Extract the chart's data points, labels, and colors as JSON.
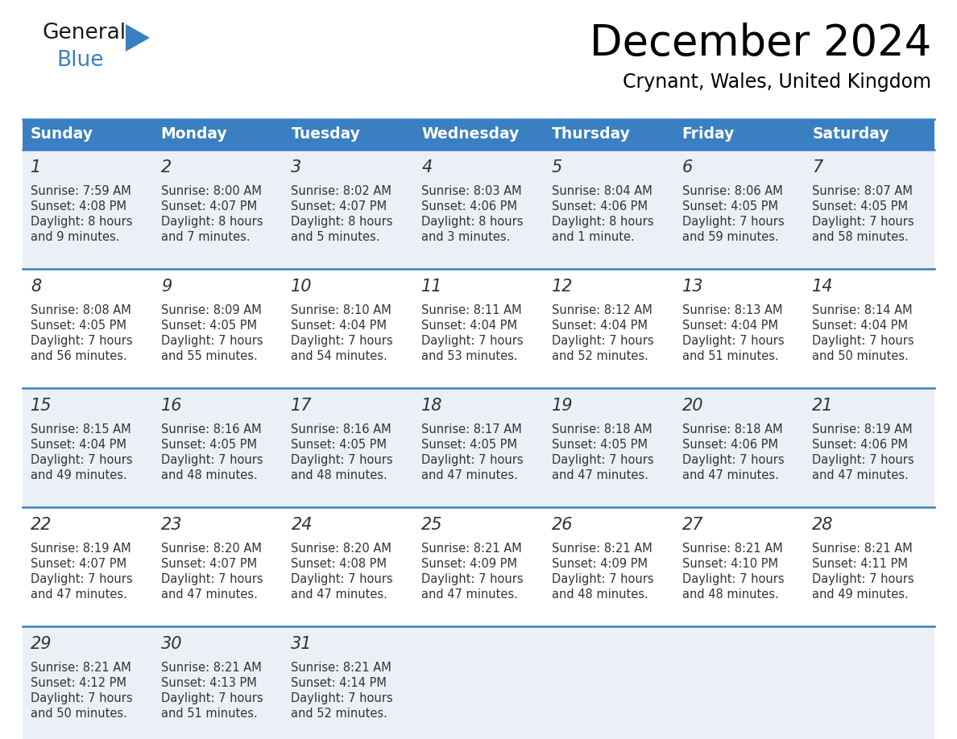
{
  "title": "December 2024",
  "subtitle": "Crynant, Wales, United Kingdom",
  "header_bg_color": "#3a7fc1",
  "header_text_color": "#ffffff",
  "cell_bg_color_a": "#eaf0f6",
  "cell_bg_color_b": "#ffffff",
  "divider_color": "#3a7fc1",
  "text_color": "#333333",
  "day_number_color": "#333333",
  "day_headers": [
    "Sunday",
    "Monday",
    "Tuesday",
    "Wednesday",
    "Thursday",
    "Friday",
    "Saturday"
  ],
  "weeks": [
    [
      {
        "day": "1",
        "sunrise": "7:59 AM",
        "sunset": "4:08 PM",
        "daylight1": "Daylight: 8 hours",
        "daylight2": "and 9 minutes."
      },
      {
        "day": "2",
        "sunrise": "8:00 AM",
        "sunset": "4:07 PM",
        "daylight1": "Daylight: 8 hours",
        "daylight2": "and 7 minutes."
      },
      {
        "day": "3",
        "sunrise": "8:02 AM",
        "sunset": "4:07 PM",
        "daylight1": "Daylight: 8 hours",
        "daylight2": "and 5 minutes."
      },
      {
        "day": "4",
        "sunrise": "8:03 AM",
        "sunset": "4:06 PM",
        "daylight1": "Daylight: 8 hours",
        "daylight2": "and 3 minutes."
      },
      {
        "day": "5",
        "sunrise": "8:04 AM",
        "sunset": "4:06 PM",
        "daylight1": "Daylight: 8 hours",
        "daylight2": "and 1 minute."
      },
      {
        "day": "6",
        "sunrise": "8:06 AM",
        "sunset": "4:05 PM",
        "daylight1": "Daylight: 7 hours",
        "daylight2": "and 59 minutes."
      },
      {
        "day": "7",
        "sunrise": "8:07 AM",
        "sunset": "4:05 PM",
        "daylight1": "Daylight: 7 hours",
        "daylight2": "and 58 minutes."
      }
    ],
    [
      {
        "day": "8",
        "sunrise": "8:08 AM",
        "sunset": "4:05 PM",
        "daylight1": "Daylight: 7 hours",
        "daylight2": "and 56 minutes."
      },
      {
        "day": "9",
        "sunrise": "8:09 AM",
        "sunset": "4:05 PM",
        "daylight1": "Daylight: 7 hours",
        "daylight2": "and 55 minutes."
      },
      {
        "day": "10",
        "sunrise": "8:10 AM",
        "sunset": "4:04 PM",
        "daylight1": "Daylight: 7 hours",
        "daylight2": "and 54 minutes."
      },
      {
        "day": "11",
        "sunrise": "8:11 AM",
        "sunset": "4:04 PM",
        "daylight1": "Daylight: 7 hours",
        "daylight2": "and 53 minutes."
      },
      {
        "day": "12",
        "sunrise": "8:12 AM",
        "sunset": "4:04 PM",
        "daylight1": "Daylight: 7 hours",
        "daylight2": "and 52 minutes."
      },
      {
        "day": "13",
        "sunrise": "8:13 AM",
        "sunset": "4:04 PM",
        "daylight1": "Daylight: 7 hours",
        "daylight2": "and 51 minutes."
      },
      {
        "day": "14",
        "sunrise": "8:14 AM",
        "sunset": "4:04 PM",
        "daylight1": "Daylight: 7 hours",
        "daylight2": "and 50 minutes."
      }
    ],
    [
      {
        "day": "15",
        "sunrise": "8:15 AM",
        "sunset": "4:04 PM",
        "daylight1": "Daylight: 7 hours",
        "daylight2": "and 49 minutes."
      },
      {
        "day": "16",
        "sunrise": "8:16 AM",
        "sunset": "4:05 PM",
        "daylight1": "Daylight: 7 hours",
        "daylight2": "and 48 minutes."
      },
      {
        "day": "17",
        "sunrise": "8:16 AM",
        "sunset": "4:05 PM",
        "daylight1": "Daylight: 7 hours",
        "daylight2": "and 48 minutes."
      },
      {
        "day": "18",
        "sunrise": "8:17 AM",
        "sunset": "4:05 PM",
        "daylight1": "Daylight: 7 hours",
        "daylight2": "and 47 minutes."
      },
      {
        "day": "19",
        "sunrise": "8:18 AM",
        "sunset": "4:05 PM",
        "daylight1": "Daylight: 7 hours",
        "daylight2": "and 47 minutes."
      },
      {
        "day": "20",
        "sunrise": "8:18 AM",
        "sunset": "4:06 PM",
        "daylight1": "Daylight: 7 hours",
        "daylight2": "and 47 minutes."
      },
      {
        "day": "21",
        "sunrise": "8:19 AM",
        "sunset": "4:06 PM",
        "daylight1": "Daylight: 7 hours",
        "daylight2": "and 47 minutes."
      }
    ],
    [
      {
        "day": "22",
        "sunrise": "8:19 AM",
        "sunset": "4:07 PM",
        "daylight1": "Daylight: 7 hours",
        "daylight2": "and 47 minutes."
      },
      {
        "day": "23",
        "sunrise": "8:20 AM",
        "sunset": "4:07 PM",
        "daylight1": "Daylight: 7 hours",
        "daylight2": "and 47 minutes."
      },
      {
        "day": "24",
        "sunrise": "8:20 AM",
        "sunset": "4:08 PM",
        "daylight1": "Daylight: 7 hours",
        "daylight2": "and 47 minutes."
      },
      {
        "day": "25",
        "sunrise": "8:21 AM",
        "sunset": "4:09 PM",
        "daylight1": "Daylight: 7 hours",
        "daylight2": "and 47 minutes."
      },
      {
        "day": "26",
        "sunrise": "8:21 AM",
        "sunset": "4:09 PM",
        "daylight1": "Daylight: 7 hours",
        "daylight2": "and 48 minutes."
      },
      {
        "day": "27",
        "sunrise": "8:21 AM",
        "sunset": "4:10 PM",
        "daylight1": "Daylight: 7 hours",
        "daylight2": "and 48 minutes."
      },
      {
        "day": "28",
        "sunrise": "8:21 AM",
        "sunset": "4:11 PM",
        "daylight1": "Daylight: 7 hours",
        "daylight2": "and 49 minutes."
      }
    ],
    [
      {
        "day": "29",
        "sunrise": "8:21 AM",
        "sunset": "4:12 PM",
        "daylight1": "Daylight: 7 hours",
        "daylight2": "and 50 minutes."
      },
      {
        "day": "30",
        "sunrise": "8:21 AM",
        "sunset": "4:13 PM",
        "daylight1": "Daylight: 7 hours",
        "daylight2": "and 51 minutes."
      },
      {
        "day": "31",
        "sunrise": "8:21 AM",
        "sunset": "4:14 PM",
        "daylight1": "Daylight: 7 hours",
        "daylight2": "and 52 minutes."
      },
      null,
      null,
      null,
      null
    ]
  ],
  "logo_general_color": "#1a1a1a",
  "logo_blue_color": "#3a7fc1",
  "logo_triangle_color": "#3a7fc1",
  "fig_width": 11.88,
  "fig_height": 9.18,
  "dpi": 100
}
